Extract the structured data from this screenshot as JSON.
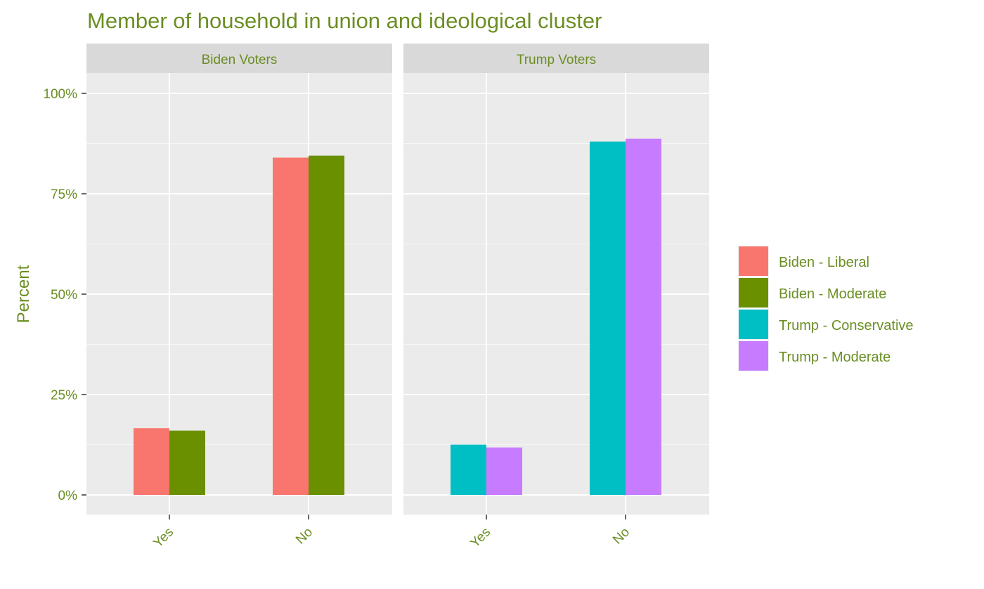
{
  "chart_data": {
    "type": "bar",
    "title": "Member of household in union and ideological cluster",
    "ylabel": "Percent",
    "xlabel": "",
    "ylim": [
      0,
      1.1
    ],
    "yticks": [
      0,
      0.25,
      0.5,
      0.75,
      1.0
    ],
    "ytick_labels": [
      "0%",
      "25%",
      "50%",
      "75%",
      "100%"
    ],
    "categories": [
      "Yes",
      "No"
    ],
    "grid": true,
    "legend_position": "right",
    "legend": [
      {
        "name": "Biden - Liberal",
        "color": "#F8766D"
      },
      {
        "name": "Biden - Moderate",
        "color": "#6A9000"
      },
      {
        "name": "Trump - Conservative",
        "color": "#00BFC4"
      },
      {
        "name": "Trump - Moderate",
        "color": "#C77CFF"
      }
    ],
    "panels": [
      {
        "title": "Biden Voters",
        "series": [
          {
            "name": "Biden - Liberal",
            "color": "#F8766D",
            "values": [
              0.166,
              0.84
            ]
          },
          {
            "name": "Biden - Moderate",
            "color": "#6A9000",
            "values": [
              0.16,
              0.845
            ]
          }
        ]
      },
      {
        "title": "Trump Voters",
        "series": [
          {
            "name": "Trump - Conservative",
            "color": "#00BFC4",
            "values": [
              0.125,
              0.88
            ]
          },
          {
            "name": "Trump - Moderate",
            "color": "#C77CFF",
            "values": [
              0.118,
              0.887
            ]
          }
        ]
      }
    ]
  },
  "colors": {
    "title_text": "#6B8E23",
    "axis_text": "#6B8E23",
    "panel_bg": "#EBEBEB",
    "strip_bg": "#D9D9D9",
    "grid_major": "#FFFFFF",
    "tick": "#333333"
  }
}
